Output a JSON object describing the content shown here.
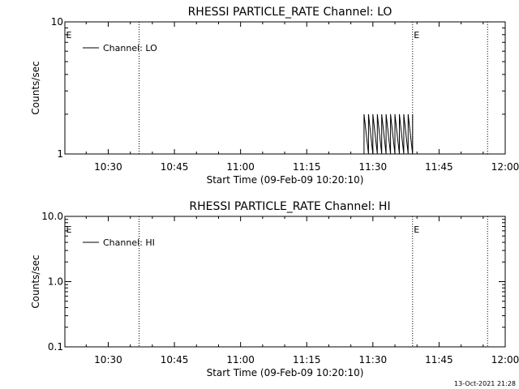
{
  "footer": {
    "timestamp": "13-Oct-2021 21:28"
  },
  "chart_data": [
    {
      "type": "line",
      "title": "RHESSI PARTICLE_RATE Channel: LO",
      "xlabel": "Start Time (09-Feb-09 10:20:10)",
      "ylabel": "Counts/sec",
      "yscale": "log",
      "ylim": [
        1,
        10
      ],
      "xlim": [
        "10:20:10",
        "12:00"
      ],
      "xticks": [
        "10:30",
        "10:45",
        "11:00",
        "11:15",
        "11:30",
        "11:45",
        "12:00"
      ],
      "yticks": [
        "1",
        "10"
      ],
      "legend": {
        "entry": "Channel: LO",
        "placement": "top-left"
      },
      "markers": [
        {
          "label": "E",
          "time": "10:20:10"
        },
        {
          "label": "E",
          "time": "11:39"
        }
      ],
      "vlines": [
        "10:37",
        "11:39",
        "11:56"
      ],
      "series": [
        {
          "x": [
            "11:28",
            "11:28",
            "11:29",
            "11:29",
            "11:30",
            "11:30",
            "11:31",
            "11:31",
            "11:32",
            "11:32",
            "11:33",
            "11:33",
            "11:34",
            "11:34",
            "11:35",
            "11:35",
            "11:35",
            "11:35",
            "11:36",
            "11:36",
            "11:37",
            "11:37",
            "11:38",
            "11:38",
            "11:39",
            "11:39"
          ],
          "values": [
            1,
            2,
            1,
            2,
            1,
            2,
            1,
            2,
            1,
            2,
            1,
            2,
            1,
            2,
            1,
            2,
            1,
            2,
            1,
            2,
            1,
            2,
            1,
            2,
            1,
            2
          ]
        }
      ]
    },
    {
      "type": "line",
      "title": "RHESSI PARTICLE_RATE Channel: HI",
      "xlabel": "Start Time (09-Feb-09 10:20:10)",
      "ylabel": "Counts/sec",
      "yscale": "log",
      "ylim": [
        0.1,
        10
      ],
      "xlim": [
        "10:20:10",
        "12:00"
      ],
      "xticks": [
        "10:30",
        "10:45",
        "11:00",
        "11:15",
        "11:30",
        "11:45",
        "12:00"
      ],
      "yticks": [
        "0.1",
        "1.0",
        "10.0"
      ],
      "legend": {
        "entry": "Channel: HI",
        "placement": "top-left"
      },
      "markers": [
        {
          "label": "E",
          "time": "10:20:10"
        },
        {
          "label": "E",
          "time": "11:39"
        }
      ],
      "vlines": [
        "10:37",
        "11:39",
        "11:56"
      ],
      "series": []
    }
  ]
}
